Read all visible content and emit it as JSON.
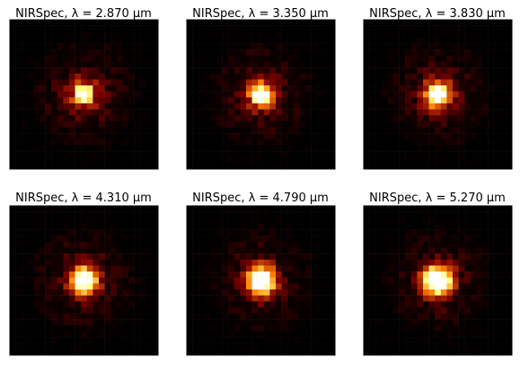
{
  "figure": {
    "background": "#ffffff",
    "colormap": "afmhot"
  },
  "chart_data": [
    {
      "type": "heatmap",
      "title": "NIRSpec, λ = 2.870 μm",
      "instrument": "NIRSpec",
      "wavelength": 2.87,
      "wavelength_unit": "μm",
      "grid": [
        25,
        25
      ],
      "peak": [
        12,
        12
      ],
      "axes_visible": false
    },
    {
      "type": "heatmap",
      "title": "NIRSpec, λ = 3.350 μm",
      "instrument": "NIRSpec",
      "wavelength": 3.35,
      "wavelength_unit": "μm",
      "grid": [
        25,
        25
      ],
      "peak": [
        12,
        12
      ],
      "axes_visible": false
    },
    {
      "type": "heatmap",
      "title": "NIRSpec, λ = 3.830 μm",
      "instrument": "NIRSpec",
      "wavelength": 3.83,
      "wavelength_unit": "μm",
      "grid": [
        25,
        25
      ],
      "peak": [
        12,
        12
      ],
      "axes_visible": false
    },
    {
      "type": "heatmap",
      "title": "NIRSpec, λ = 4.310 μm",
      "instrument": "NIRSpec",
      "wavelength": 4.31,
      "wavelength_unit": "μm",
      "grid": [
        25,
        25
      ],
      "peak": [
        12,
        12
      ],
      "axes_visible": false
    },
    {
      "type": "heatmap",
      "title": "NIRSpec, λ = 4.790 μm",
      "instrument": "NIRSpec",
      "wavelength": 4.79,
      "wavelength_unit": "μm",
      "grid": [
        25,
        25
      ],
      "peak": [
        12,
        12
      ],
      "axes_visible": false
    },
    {
      "type": "heatmap",
      "title": "NIRSpec, λ = 5.270 μm",
      "instrument": "NIRSpec",
      "wavelength": 5.27,
      "wavelength_unit": "μm",
      "grid": [
        25,
        25
      ],
      "peak": [
        12,
        12
      ],
      "axes_visible": false
    }
  ]
}
